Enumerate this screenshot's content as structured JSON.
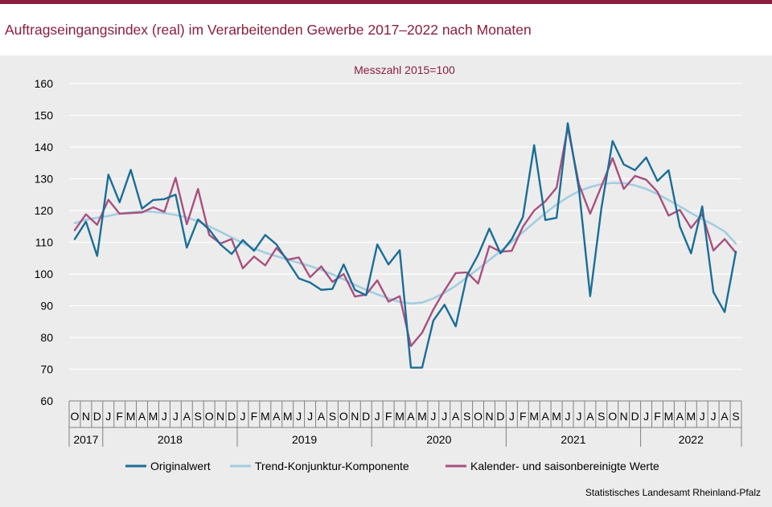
{
  "header": {
    "title": "Auftragseingangsindex (real) im Verarbeitenden Gewerbe 2017–2022 nach Monaten"
  },
  "footer": {
    "source": "Statistisches Landesamt Rheinland-Pfalz"
  },
  "colors": {
    "accent": "#8b1e3f",
    "original": "#1a6e96",
    "trend": "#a3cde0",
    "adjusted": "#a8507f",
    "background": "#ececec"
  },
  "chart_data": {
    "type": "line",
    "subtitle": "Messzahl 2015=100",
    "ylim": [
      60,
      160
    ],
    "yticks": [
      60,
      70,
      80,
      90,
      100,
      110,
      120,
      130,
      140,
      150,
      160
    ],
    "grid": true,
    "legend_position": "bottom",
    "x": [
      "O",
      "N",
      "D",
      "J",
      "F",
      "M",
      "A",
      "M",
      "J",
      "J",
      "A",
      "S",
      "O",
      "N",
      "D",
      "J",
      "F",
      "M",
      "A",
      "M",
      "J",
      "J",
      "A",
      "S",
      "O",
      "N",
      "D",
      "J",
      "F",
      "M",
      "A",
      "M",
      "J",
      "J",
      "A",
      "S",
      "O",
      "N",
      "D",
      "J",
      "F",
      "M",
      "A",
      "M",
      "J",
      "J",
      "A",
      "S",
      "O",
      "N",
      "D",
      "J",
      "F",
      "M",
      "A",
      "M",
      "J",
      "J",
      "A",
      "S"
    ],
    "years": [
      {
        "label": "2017",
        "months": 3
      },
      {
        "label": "2018",
        "months": 12
      },
      {
        "label": "2019",
        "months": 12
      },
      {
        "label": "2020",
        "months": 12
      },
      {
        "label": "2021",
        "months": 12
      },
      {
        "label": "2022",
        "months": 9
      }
    ],
    "series": [
      {
        "name": "Originalwert",
        "values": [
          111,
          116.5,
          105.7,
          131.3,
          122.6,
          132.8,
          120.6,
          123.3,
          123.6,
          125,
          108.3,
          117.2,
          114,
          109.3,
          106.3,
          110.7,
          107.3,
          112.3,
          109.3,
          104,
          98.6,
          97.3,
          95,
          95.3,
          103,
          95,
          93.3,
          109.3,
          103,
          107.5,
          70.5,
          70.5,
          85.3,
          90.3,
          83.5,
          99.5,
          106,
          114.3,
          106.5,
          111,
          118,
          140.6,
          117,
          117.7,
          147.5,
          126.7,
          93,
          120.7,
          141.9,
          134.5,
          132.7,
          136.7,
          129.3,
          132.7,
          115,
          106.5,
          121.3,
          94.3,
          88,
          107
        ]
      },
      {
        "name": "Trend-Konjunktur-Komponente",
        "values": [
          116,
          117.1,
          117.7,
          118.3,
          119,
          119.5,
          119.7,
          119.6,
          119.2,
          118.6,
          117.8,
          116.6,
          115,
          113.3,
          111.5,
          109.7,
          108,
          106.7,
          105.6,
          104.6,
          103.5,
          102.5,
          101.3,
          99.9,
          98.3,
          96.6,
          95,
          93.6,
          92.3,
          91.2,
          90.7,
          91,
          92.3,
          94.1,
          96.3,
          98.9,
          101.6,
          104.4,
          107.2,
          110.1,
          113.2,
          116.2,
          119.2,
          121.9,
          124.2,
          126.1,
          127.4,
          128.3,
          128.7,
          128.6,
          127.9,
          126.8,
          125.2,
          123.3,
          121.3,
          119.2,
          117.3,
          115.5,
          113.4,
          109.6
        ]
      },
      {
        "name": "Kalender- und saisonbereinigte Werte",
        "values": [
          113.8,
          118.8,
          115.5,
          123.4,
          119,
          119.2,
          119.4,
          121,
          119.6,
          130.3,
          115.7,
          126.8,
          112.3,
          109.6,
          111,
          101.8,
          105.5,
          102.7,
          108.2,
          104.5,
          105.2,
          99,
          102.4,
          97.5,
          100,
          92.9,
          93.5,
          98,
          91.3,
          93,
          77.3,
          81.5,
          88.8,
          94.8,
          100.3,
          100.5,
          97,
          108.8,
          107,
          107.3,
          114.9,
          120,
          122.9,
          127.2,
          146.2,
          128.2,
          119,
          127.6,
          136.5,
          126.8,
          130.9,
          129.7,
          125.9,
          118.4,
          120.2,
          114.5,
          118.9,
          107.4,
          111,
          106.7
        ]
      }
    ]
  }
}
